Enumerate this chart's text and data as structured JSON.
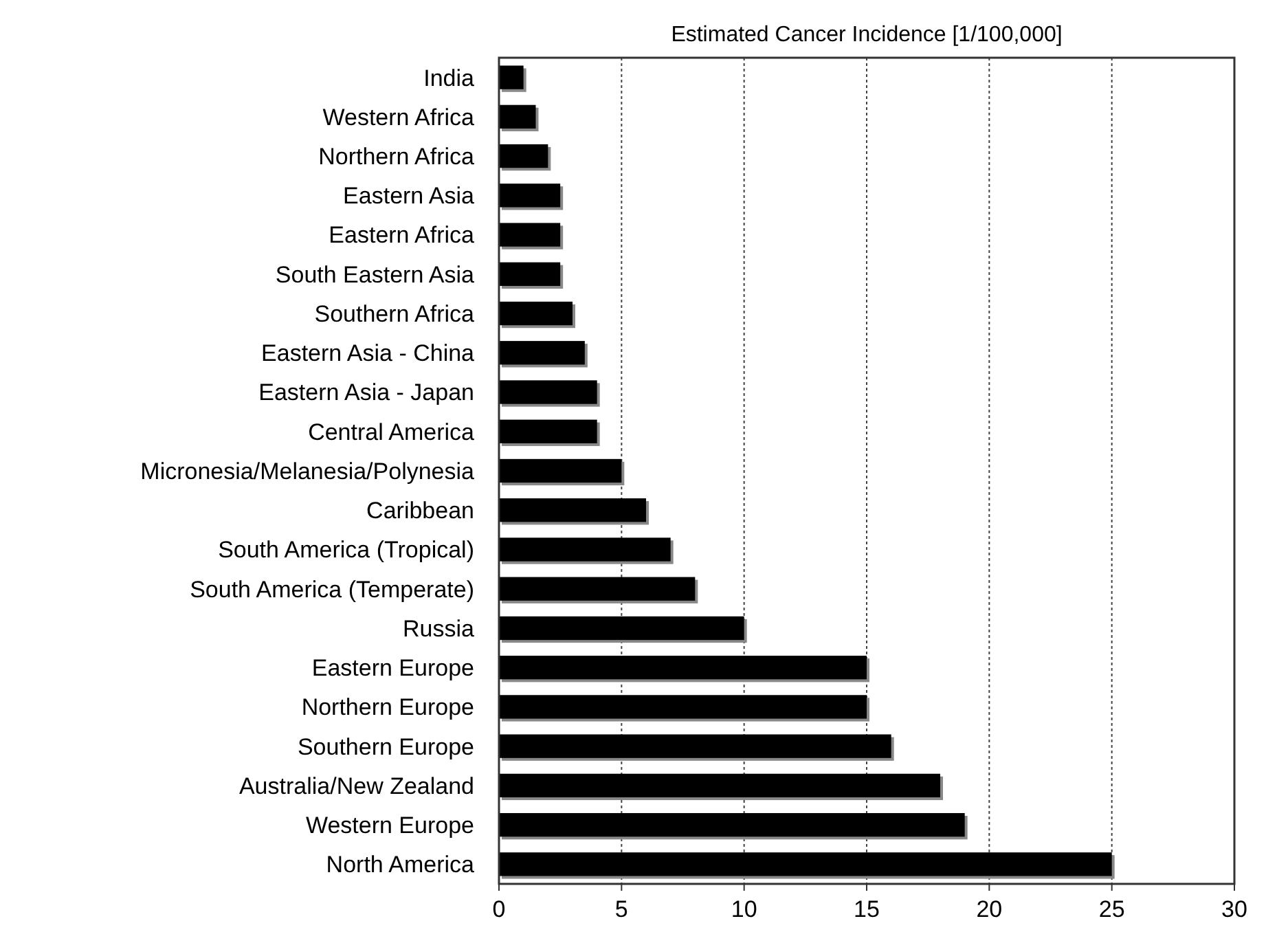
{
  "chart_data": {
    "type": "bar",
    "orientation": "horizontal",
    "title": "Estimated Cancer Incidence [1/100,000]",
    "categories": [
      "India",
      "Western Africa",
      "Northern Africa",
      "Eastern Asia",
      "Eastern Africa",
      "South Eastern Asia",
      "Southern Africa",
      "Eastern Asia - China",
      "Eastern Asia - Japan",
      "Central America",
      "Micronesia/Melanesia/Polynesia",
      "Caribbean",
      "South America (Tropical)",
      "South America (Temperate)",
      "Russia",
      "Eastern Europe",
      "Northern Europe",
      "Southern Europe",
      "Australia/New Zealand",
      "Western Europe",
      "North America"
    ],
    "values": [
      1,
      1.5,
      2,
      2.5,
      2.5,
      2.5,
      3,
      3.5,
      4,
      4,
      5,
      6,
      7,
      8,
      10,
      15,
      15,
      16,
      18,
      19,
      25
    ],
    "color": "#000000",
    "xlim": [
      0,
      30
    ],
    "xticks": [
      0,
      5,
      10,
      15,
      20,
      25,
      30
    ],
    "grid": "x"
  }
}
